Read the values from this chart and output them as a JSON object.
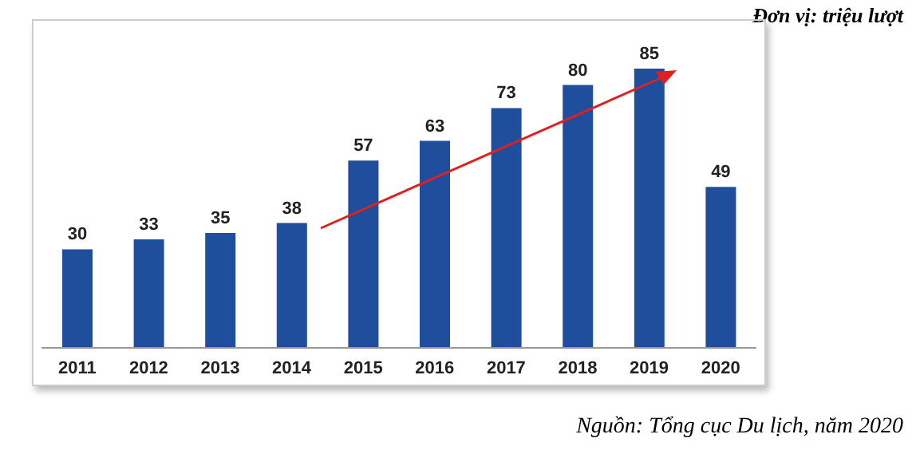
{
  "chart_data": {
    "type": "bar",
    "categories": [
      "2011",
      "2012",
      "2013",
      "2014",
      "2015",
      "2016",
      "2017",
      "2018",
      "2019",
      "2020"
    ],
    "values": [
      30,
      33,
      35,
      38,
      57,
      63,
      73,
      80,
      85,
      49
    ],
    "color": "#1f4e9c",
    "data_labels": true,
    "annotations": [
      "Đơn vị: triệu lượt",
      "Nguồn: Tổng cục Du lịch, năm 2020"
    ]
  }
}
